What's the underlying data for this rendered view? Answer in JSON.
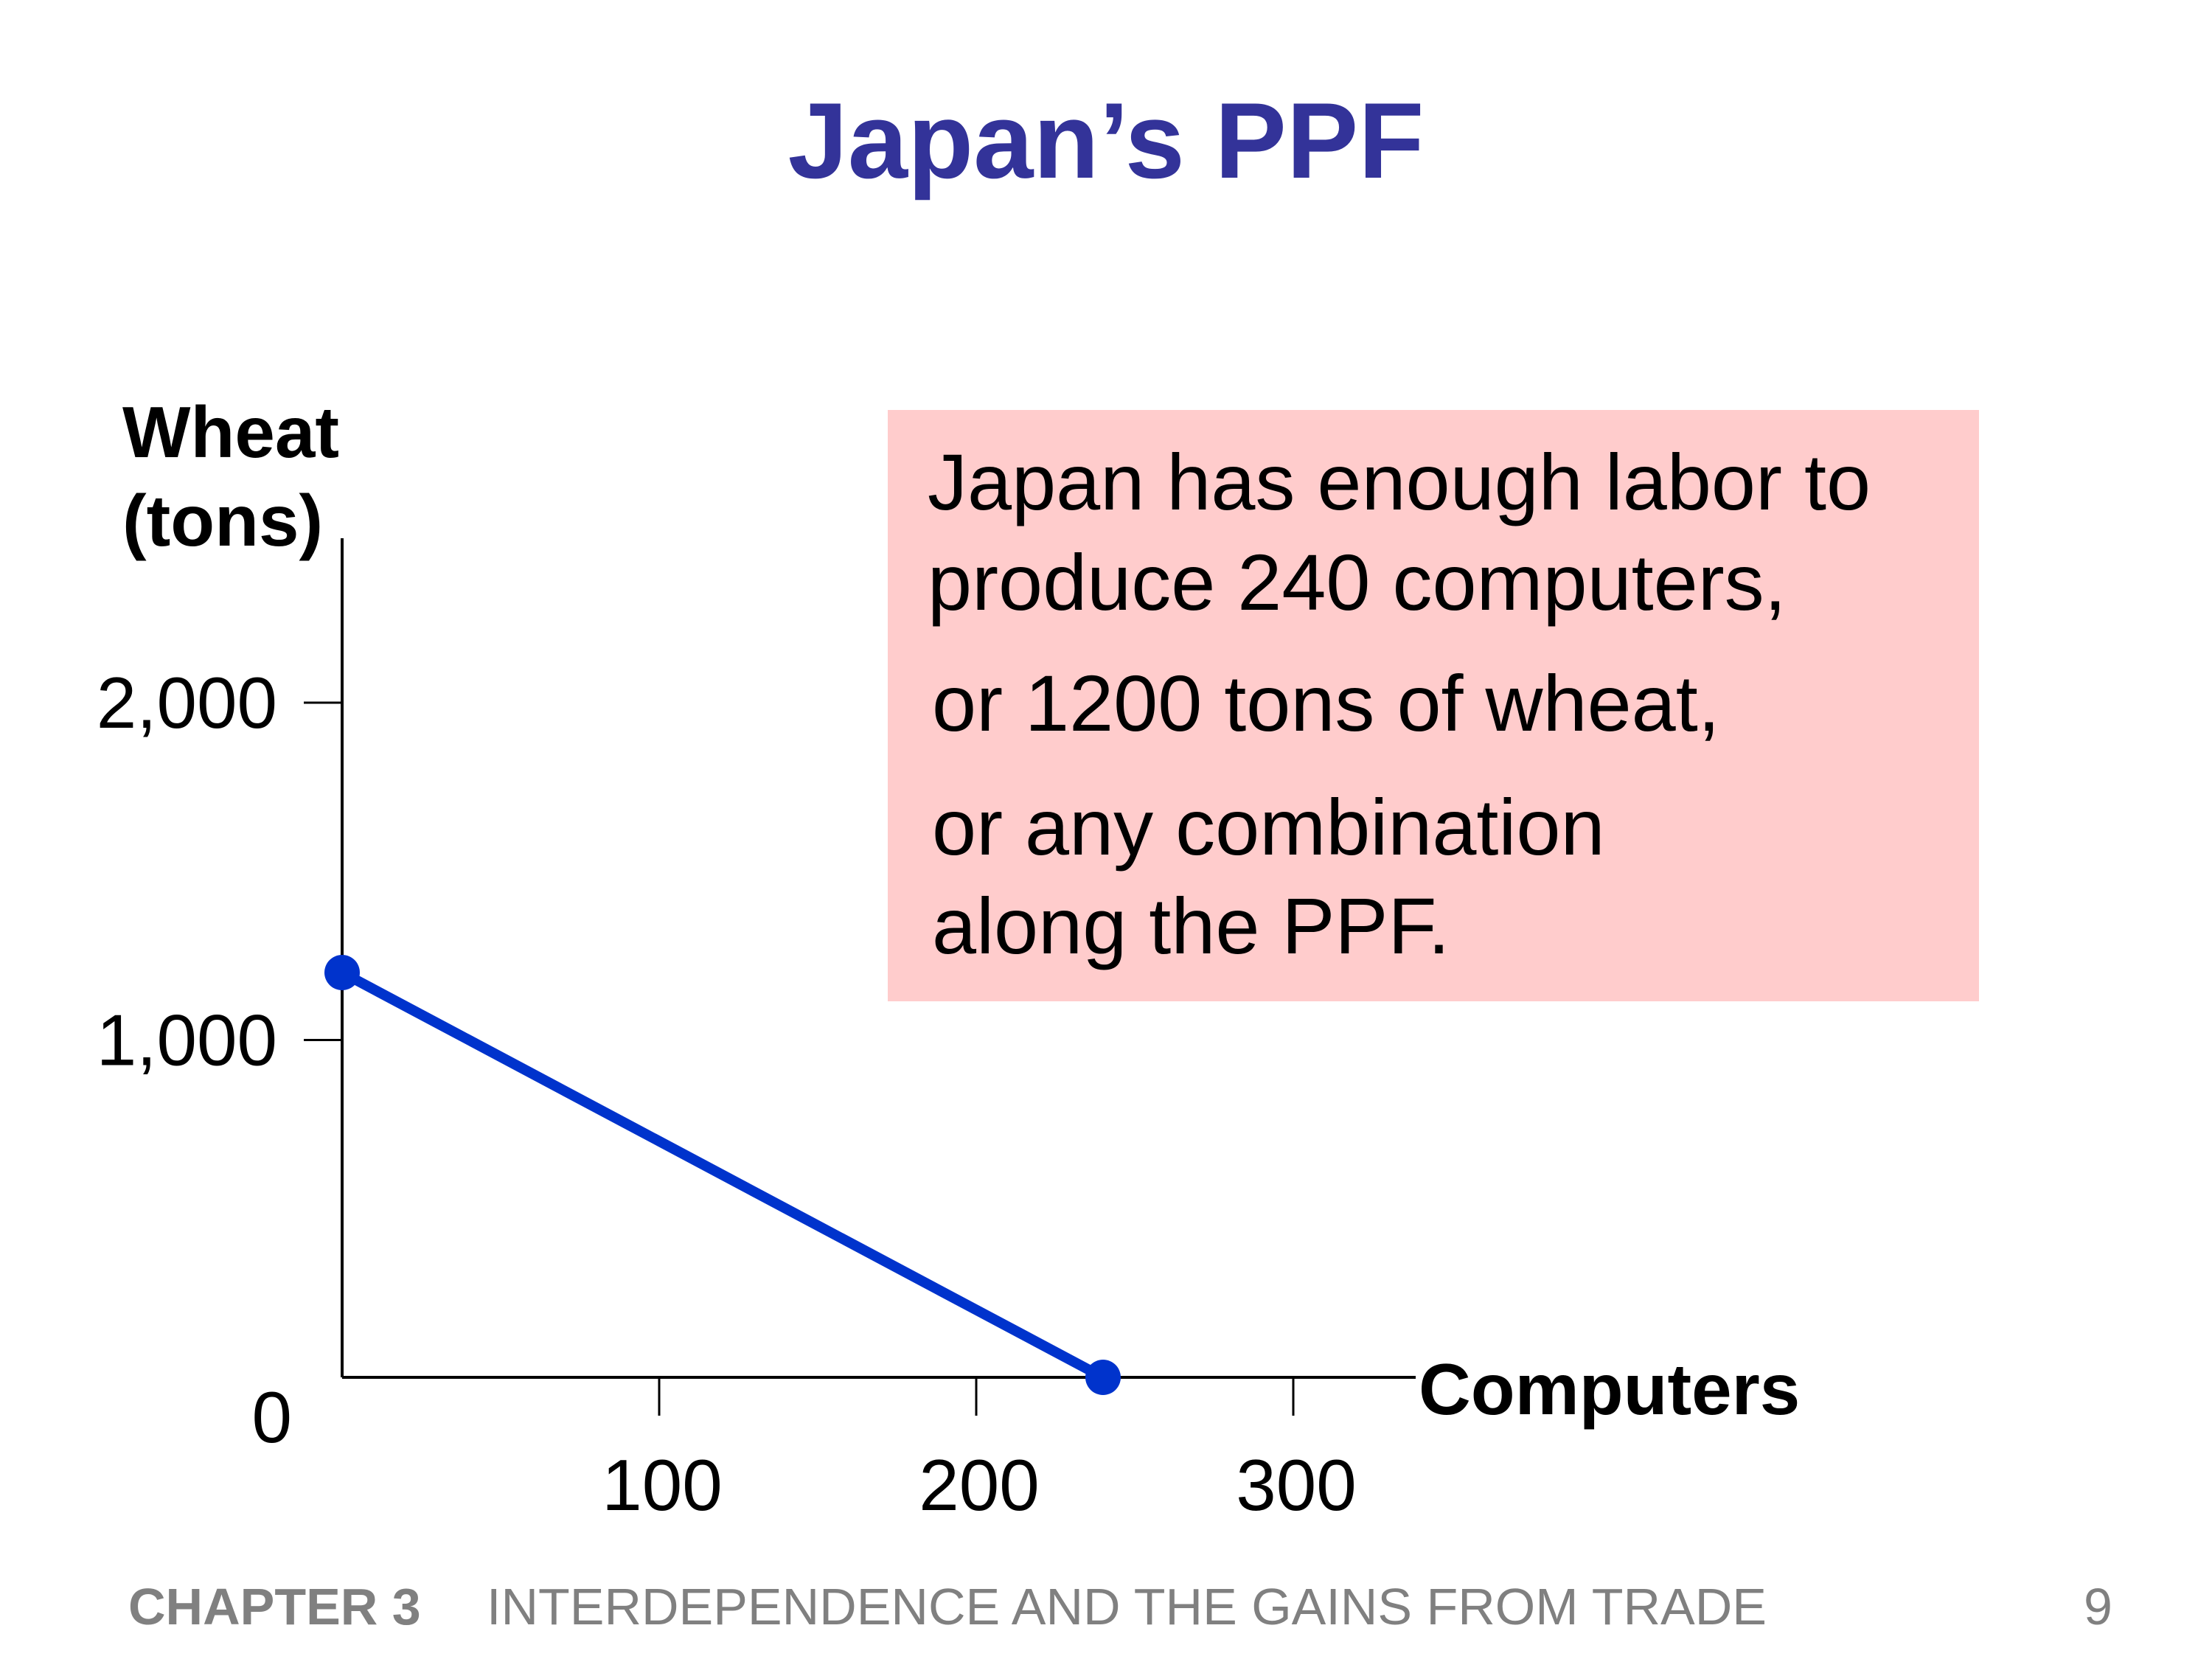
{
  "slide": {
    "title": "Japan’s PPF"
  },
  "chart_data": {
    "type": "line",
    "xlabel": "Computers",
    "ylabel_lines": [
      "Wheat",
      "(tons)"
    ],
    "x_ticks": [
      100,
      200,
      300
    ],
    "x_tick_labels": [
      "100",
      "200",
      "300"
    ],
    "y_ticks": [
      1000,
      2000
    ],
    "y_tick_labels": [
      "1,000",
      "2,000"
    ],
    "origin_label": "0",
    "xlim": [
      0,
      340
    ],
    "ylim": [
      0,
      2500
    ],
    "grid": false,
    "series": [
      {
        "x": [
          0,
          240
        ],
        "y": [
          1200,
          0
        ],
        "color": "#0033cc"
      }
    ]
  },
  "callout": {
    "lines": [
      "Japan has enough labor to",
      "produce 240 computers,",
      "or 1200 tons of wheat,",
      "or any combination",
      "along the PPF."
    ],
    "background": "#ffcccc"
  },
  "footer": {
    "chapter": "CHAPTER 3",
    "subtitle": "INTERDEPENDENCE AND THE GAINS FROM TRADE",
    "page": "9"
  },
  "colors": {
    "title": "#333399",
    "line": "#0033cc",
    "footer": "#808080"
  }
}
